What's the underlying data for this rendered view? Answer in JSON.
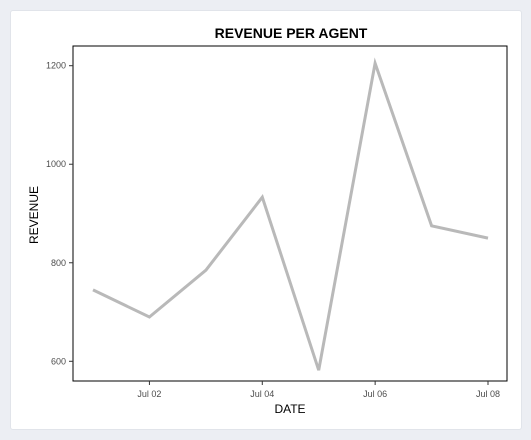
{
  "chart_data": {
    "type": "line",
    "title": "REVENUE PER AGENT",
    "xlabel": "DATE",
    "ylabel": "REVENUE",
    "x": [
      "Jul 01",
      "Jul 02",
      "Jul 03",
      "Jul 04",
      "Jul 05",
      "Jul 06",
      "Jul 07",
      "Jul 08"
    ],
    "series": [
      {
        "values": [
          745,
          690,
          785,
          933,
          582,
          1205,
          875,
          850
        ]
      }
    ],
    "x_ticks": [
      "Jul 02",
      "Jul 04",
      "Jul 06",
      "Jul 08"
    ],
    "y_ticks": [
      600,
      800,
      1000,
      1200
    ],
    "ylim": [
      560,
      1240
    ],
    "grid": false,
    "line_color": "#b9b9b9"
  }
}
